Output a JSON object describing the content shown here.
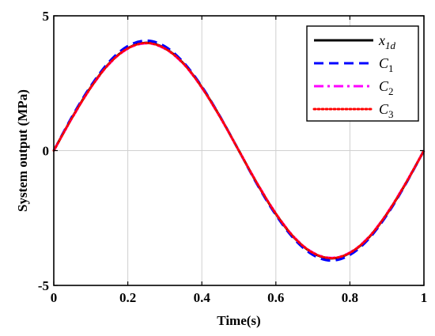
{
  "chart_data": {
    "type": "line",
    "xlabel": "Time(s)",
    "ylabel": "System output (MPa)",
    "xlim": [
      0,
      1
    ],
    "ylim": [
      -5,
      5
    ],
    "x_ticks": [
      "0",
      "0.2",
      "0.4",
      "0.6",
      "0.8",
      "1"
    ],
    "y_ticks": [
      "5",
      "0",
      "-5"
    ],
    "grid": true,
    "legend_position": "top-right",
    "series": [
      {
        "name": "x1d",
        "legend_main": "x",
        "legend_sub": "1d",
        "color": "#000000",
        "style": "solid",
        "x": [
          0,
          0.05,
          0.1,
          0.15,
          0.2,
          0.25,
          0.3,
          0.35,
          0.4,
          0.45,
          0.5,
          0.55,
          0.6,
          0.65,
          0.7,
          0.75,
          0.8,
          0.85,
          0.9,
          0.95,
          1.0
        ],
        "y": [
          0,
          1.24,
          2.35,
          3.24,
          3.8,
          4.0,
          3.8,
          3.24,
          2.35,
          1.24,
          0,
          -1.24,
          -2.35,
          -3.24,
          -3.8,
          -4.0,
          -3.8,
          -3.24,
          -2.35,
          -1.24,
          0
        ]
      },
      {
        "name": "C1",
        "legend_main": "C",
        "legend_sub": "1",
        "color": "#0000ff",
        "style": "dashed",
        "x": [
          0,
          0.05,
          0.1,
          0.15,
          0.2,
          0.25,
          0.3,
          0.35,
          0.4,
          0.45,
          0.5,
          0.55,
          0.6,
          0.65,
          0.7,
          0.75,
          0.8,
          0.85,
          0.9,
          0.95,
          1.0
        ],
        "y": [
          0,
          1.28,
          2.4,
          3.3,
          3.88,
          4.08,
          3.87,
          3.28,
          2.38,
          1.25,
          0,
          -1.27,
          -2.39,
          -3.29,
          -3.87,
          -4.08,
          -3.87,
          -3.29,
          -2.39,
          -1.26,
          0
        ]
      },
      {
        "name": "C2",
        "legend_main": "C",
        "legend_sub": "2",
        "color": "#ff00ff",
        "style": "dashdot",
        "x": [
          0,
          0.05,
          0.1,
          0.15,
          0.2,
          0.25,
          0.3,
          0.35,
          0.4,
          0.45,
          0.5,
          0.55,
          0.6,
          0.65,
          0.7,
          0.75,
          0.8,
          0.85,
          0.9,
          0.95,
          1.0
        ],
        "y": [
          0,
          1.22,
          2.33,
          3.22,
          3.78,
          3.98,
          3.78,
          3.22,
          2.33,
          1.22,
          0,
          -1.22,
          -2.33,
          -3.22,
          -3.78,
          -3.98,
          -3.78,
          -3.22,
          -2.33,
          -1.22,
          0
        ]
      },
      {
        "name": "C3",
        "legend_main": "C",
        "legend_sub": "3",
        "color": "#ff0000",
        "style": "dotted",
        "x": [
          0,
          0.05,
          0.1,
          0.15,
          0.2,
          0.25,
          0.3,
          0.35,
          0.4,
          0.45,
          0.5,
          0.55,
          0.6,
          0.65,
          0.7,
          0.75,
          0.8,
          0.85,
          0.9,
          0.95,
          1.0
        ],
        "y": [
          0,
          1.23,
          2.34,
          3.23,
          3.79,
          3.99,
          3.79,
          3.23,
          2.34,
          1.23,
          0,
          -1.23,
          -2.34,
          -3.23,
          -3.79,
          -3.99,
          -3.79,
          -3.23,
          -2.34,
          -1.23,
          0
        ]
      }
    ]
  }
}
